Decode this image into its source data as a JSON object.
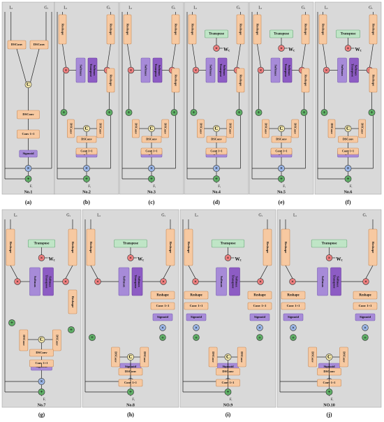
{
  "figure": {
    "colors": {
      "panel_bg": "#d9d9d9",
      "orange_box": "#f7c9a1",
      "orange_border": "#c98a57",
      "purple_light": "#a78bd8",
      "purple_dark": "#8d5cc4",
      "green_box": "#bfe5c6",
      "green_border": "#6aa87a",
      "circle_red": "#f08080",
      "circle_green": "#5fae66",
      "circle_blue": "#9bb6e6",
      "concat": "#f3e7a9"
    },
    "labels": {
      "input_l": "Lᵢ",
      "input_g": "Gᵢ",
      "output": "Fᵢ",
      "dsconv": "DSConv",
      "conv": "Conv 1×1",
      "sigmoid": "Sigmoid",
      "reshape": "Reshape",
      "softmax": "Softmax",
      "transpose_softmax": "Transpose Softmax",
      "transpose": "Transpose",
      "wc": "W",
      "wc_sub": "c",
      "concat": "C",
      "plus": "+",
      "times": "×"
    },
    "panels": [
      {
        "id": "a",
        "number": "No.1",
        "letter": "(a)",
        "type": "basic"
      },
      {
        "id": "b",
        "number": "No.2",
        "letter": "(b)",
        "type": "attn"
      },
      {
        "id": "c",
        "number": "No.3",
        "letter": "(c)",
        "type": "attn"
      },
      {
        "id": "d",
        "number": "No.4",
        "letter": "(d)",
        "type": "attn_wc"
      },
      {
        "id": "e",
        "number": "No.5",
        "letter": "(e)",
        "type": "attn_wc"
      },
      {
        "id": "f",
        "number": "No.6",
        "letter": "(f)",
        "type": "attn_wc"
      },
      {
        "id": "g",
        "number": "No.7",
        "letter": "(g)",
        "type": "attn_wc_small"
      },
      {
        "id": "h",
        "number": "No.8",
        "letter": "(h)",
        "type": "attn_wc_side"
      },
      {
        "id": "i",
        "number": "NO.9",
        "letter": "(i)",
        "type": "attn_wc_side2"
      },
      {
        "id": "j",
        "number": "NO.10",
        "letter": "(j)",
        "type": "attn_wc_side2"
      }
    ]
  }
}
